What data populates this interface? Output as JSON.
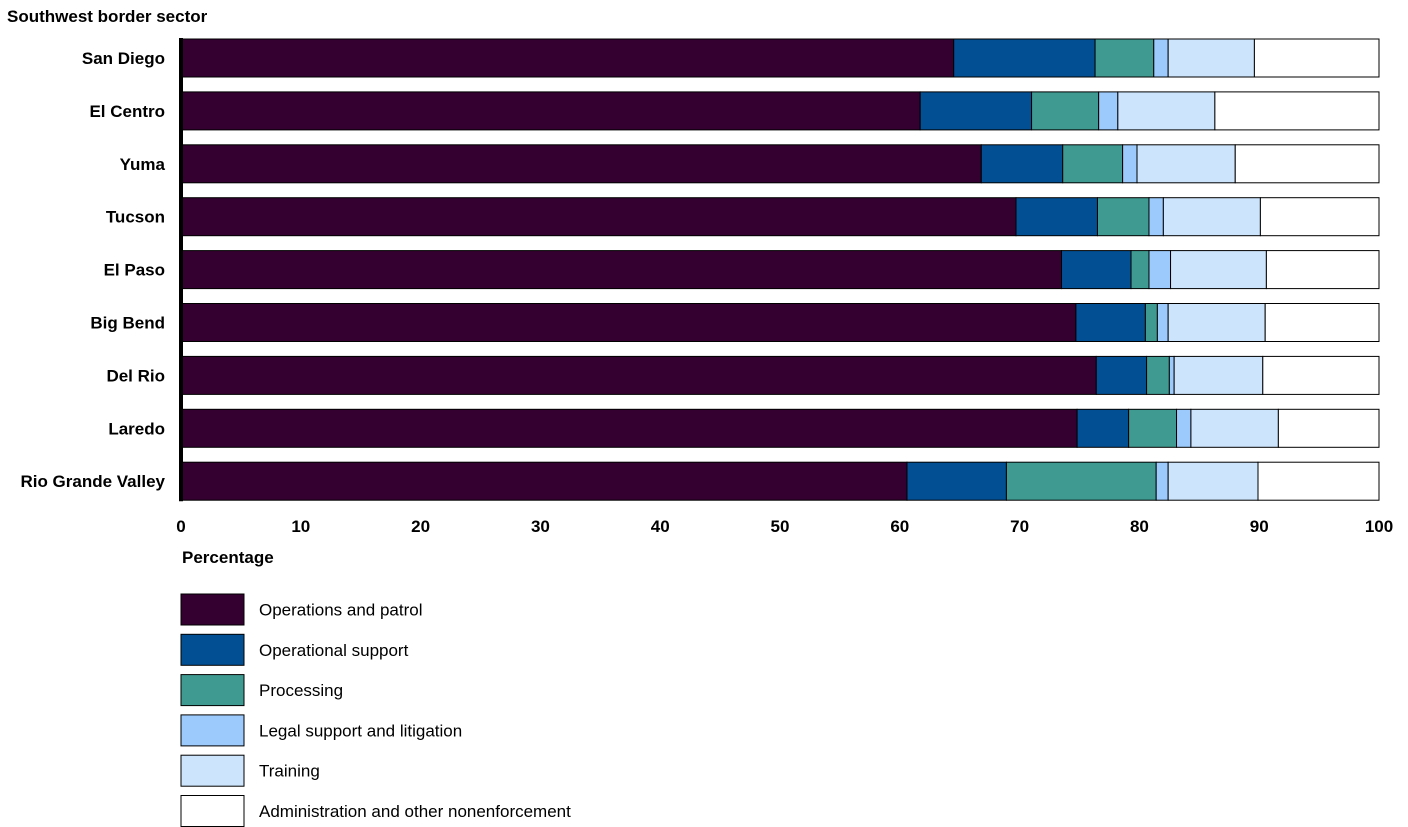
{
  "chart_data": {
    "type": "bar",
    "orientation": "horizontal",
    "stacked": true,
    "ylabel": "Southwest border sector",
    "xlabel": "Percentage",
    "xlim": [
      0,
      100
    ],
    "xticks": [
      "0",
      "10",
      "20",
      "30",
      "40",
      "50",
      "60",
      "70",
      "80",
      "90",
      "100"
    ],
    "categories": [
      "San Diego",
      "El Centro",
      "Yuma",
      "Tucson",
      "El Paso",
      "Big Bend",
      "Del Rio",
      "Laredo",
      "Rio Grande Valley"
    ],
    "series": [
      {
        "name": "Operations and patrol",
        "color": "#33002f",
        "values": [
          64.5,
          61.7,
          66.8,
          69.7,
          73.5,
          74.7,
          76.4,
          74.8,
          60.6
        ]
      },
      {
        "name": "Operational support",
        "color": "#034f94",
        "values": [
          11.8,
          9.3,
          6.8,
          6.8,
          5.8,
          5.8,
          4.2,
          4.3,
          8.3
        ]
      },
      {
        "name": "Processing",
        "color": "#3f9b92",
        "values": [
          4.9,
          5.6,
          5.0,
          4.3,
          1.5,
          1.0,
          1.9,
          4.0,
          12.5
        ]
      },
      {
        "name": "Legal support and litigation",
        "color": "#9ccafd",
        "values": [
          1.2,
          1.6,
          1.2,
          1.2,
          1.8,
          0.9,
          0.4,
          1.2,
          1.0
        ]
      },
      {
        "name": "Training",
        "color": "#cce4fc",
        "values": [
          7.2,
          8.1,
          8.2,
          8.1,
          8.0,
          8.1,
          7.4,
          7.3,
          7.5
        ]
      },
      {
        "name": "Administration and other nonenforcement",
        "color": "#ffffff",
        "values": [
          10.4,
          13.7,
          12.0,
          9.9,
          9.4,
          9.5,
          9.7,
          8.4,
          10.1
        ]
      }
    ],
    "grid": false,
    "legend_position": "bottom-left"
  }
}
